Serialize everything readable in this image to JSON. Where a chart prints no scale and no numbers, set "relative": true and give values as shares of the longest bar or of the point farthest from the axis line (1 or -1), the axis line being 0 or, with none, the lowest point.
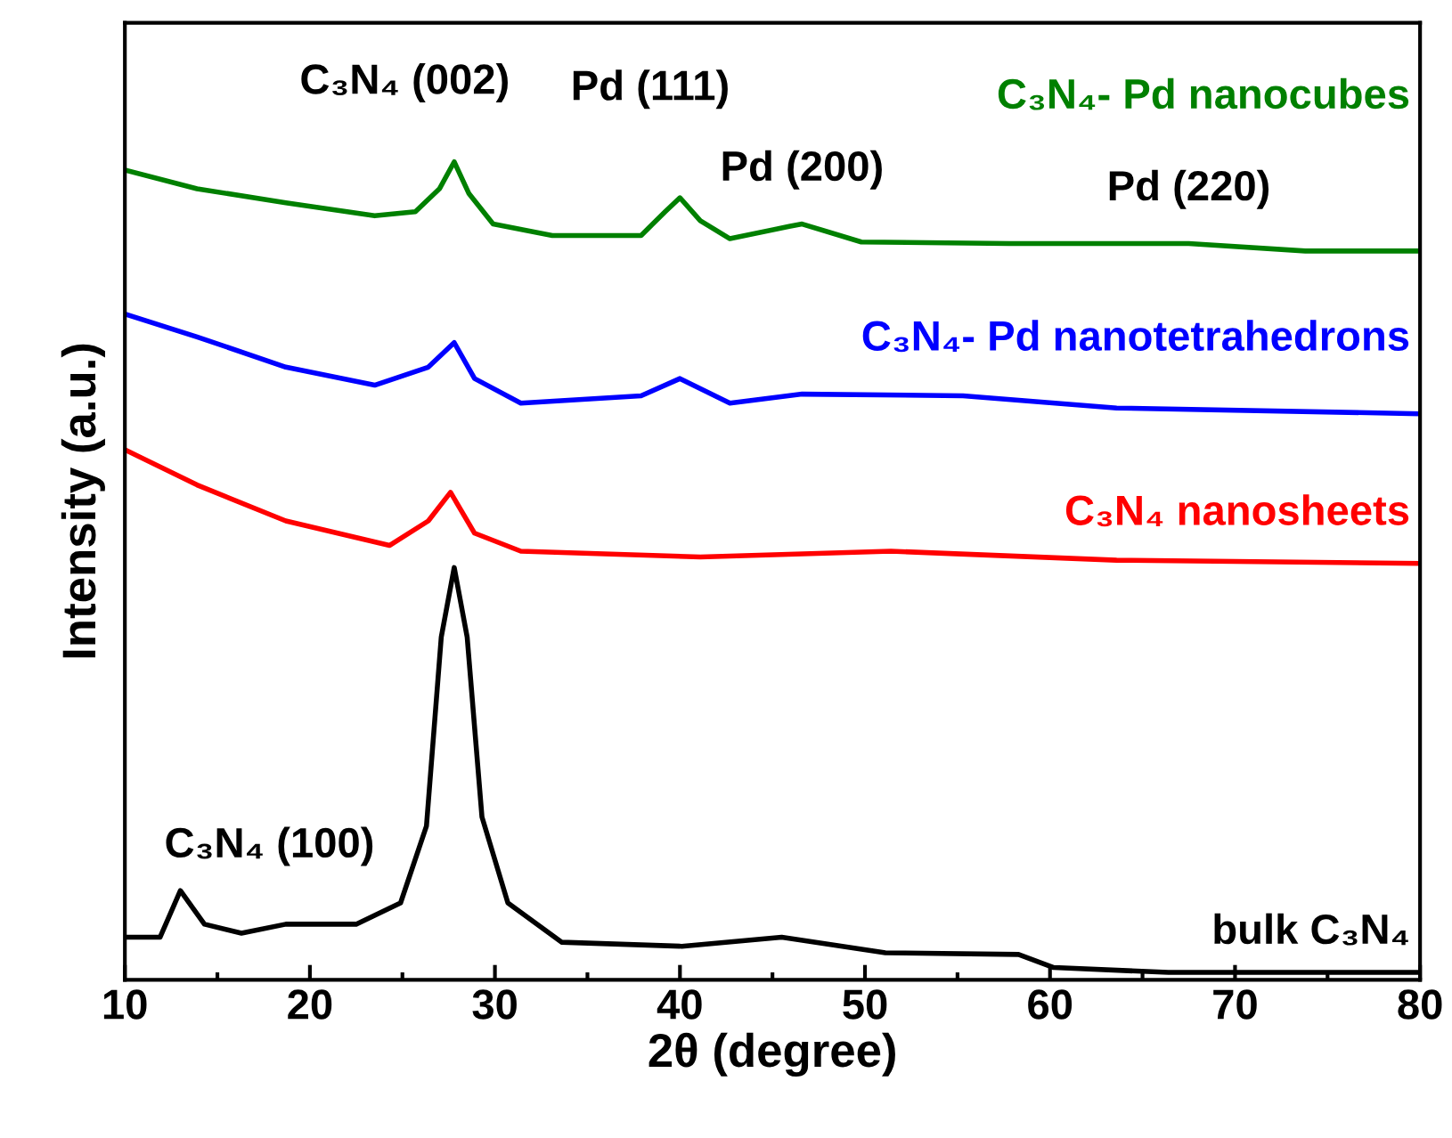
{
  "chart_data": {
    "type": "line",
    "xlabel": "2θ (degree)",
    "ylabel": "Intensity (a.u.)",
    "relative": true,
    "xlim": [
      10,
      80
    ],
    "xticks": [
      10,
      20,
      30,
      40,
      50,
      60,
      70,
      80
    ],
    "tick_labels": "x",
    "grid": false,
    "marker": "none",
    "line_style": "solid",
    "series": [
      {
        "name": "C₃N₄- Pd nanocubes",
        "color": "#008000",
        "x": [
          10,
          13.9,
          18.7,
          23.5,
          25.7,
          27.0,
          27.8,
          28.6,
          29.9,
          33.1,
          37.9,
          39.2,
          40.0,
          41.1,
          42.7,
          45.9,
          46.6,
          49.8,
          57.8,
          67.5,
          73.8,
          80
        ],
        "values": [
          0.99,
          0.967,
          0.95,
          0.934,
          0.939,
          0.967,
          1.0,
          0.961,
          0.924,
          0.91,
          0.91,
          0.939,
          0.956,
          0.928,
          0.906,
          0.921,
          0.924,
          0.902,
          0.9,
          0.9,
          0.891,
          0.891
        ]
      },
      {
        "name": "C₃N₄- Pd nanotetrahedrons",
        "color": "#0000ff",
        "x": [
          10,
          13.9,
          18.7,
          23.5,
          26.4,
          27.8,
          28.9,
          31.4,
          37.9,
          40.0,
          42.7,
          46.6,
          55.3,
          63.6,
          80
        ],
        "values": [
          0.814,
          0.786,
          0.749,
          0.727,
          0.749,
          0.779,
          0.735,
          0.705,
          0.714,
          0.735,
          0.705,
          0.716,
          0.714,
          0.699,
          0.692
        ]
      },
      {
        "name": "C₃N₄ nanosheets",
        "color": "#ff0000",
        "x": [
          10,
          13.9,
          18.7,
          24.3,
          26.4,
          27.6,
          28.9,
          31.4,
          41.1,
          51.4,
          63.6,
          80
        ],
        "values": [
          0.648,
          0.605,
          0.561,
          0.531,
          0.561,
          0.596,
          0.546,
          0.524,
          0.517,
          0.524,
          0.513,
          0.509
        ]
      },
      {
        "name": "bulk C₃N₄",
        "color": "#000000",
        "x": [
          10,
          11.9,
          13.0,
          14.3,
          16.3,
          18.7,
          22.5,
          24.9,
          26.3,
          27.1,
          27.8,
          28.5,
          29.3,
          30.7,
          33.6,
          40.1,
          45.5,
          51.1,
          58.3,
          60.2,
          66.4,
          80
        ],
        "values": [
          0.052,
          0.052,
          0.109,
          0.068,
          0.057,
          0.068,
          0.068,
          0.094,
          0.188,
          0.419,
          0.504,
          0.419,
          0.199,
          0.094,
          0.046,
          0.041,
          0.052,
          0.033,
          0.031,
          0.015,
          0.009,
          0.009
        ]
      }
    ],
    "annotations": [
      {
        "text": "C₃N₄ (002)",
        "x": 27.8,
        "y": 1.0
      },
      {
        "text": "Pd (111)",
        "x": 40.0,
        "y": 0.956
      },
      {
        "text": "Pd (200)",
        "x": 46.6,
        "y": 0.924
      },
      {
        "text": "Pd (220)",
        "x": 67.5,
        "y": 0.9
      },
      {
        "text": "C₃N₄ (100)",
        "x": 13.0,
        "y": 0.109
      }
    ]
  }
}
